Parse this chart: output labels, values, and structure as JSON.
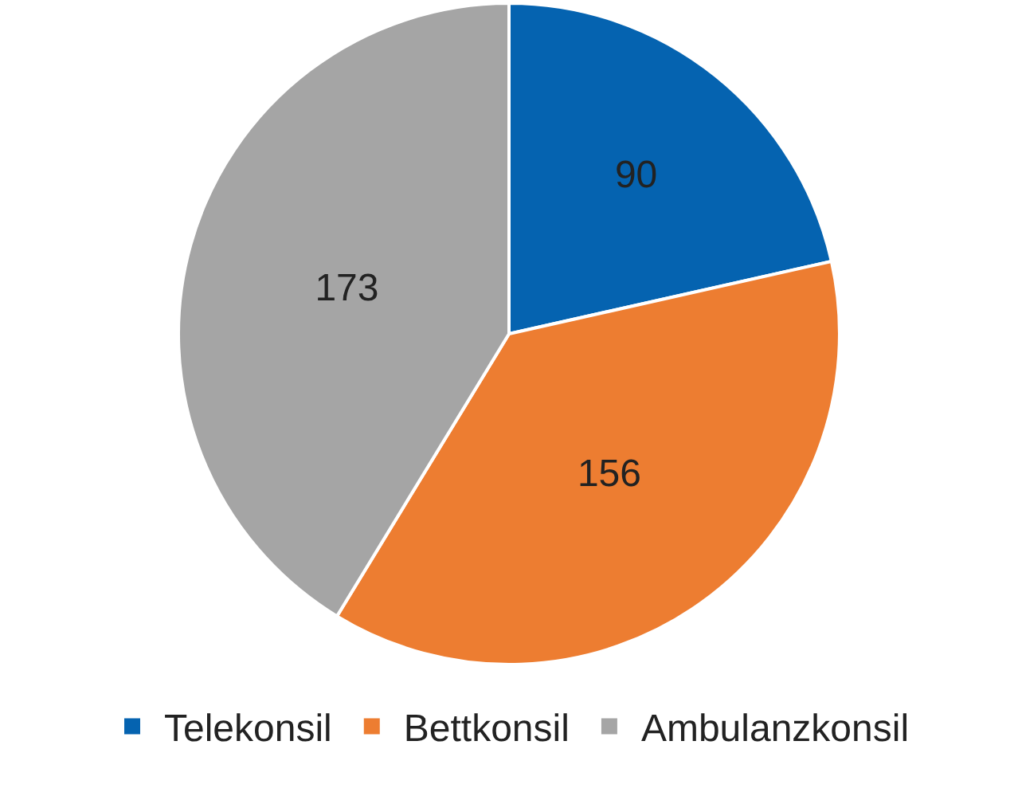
{
  "chart_data": {
    "type": "pie",
    "categories": [
      "Telekonsil",
      "Bettkonsil",
      "Ambulanzkonsil"
    ],
    "values": [
      90,
      156,
      173
    ],
    "colors": [
      "#0563b0",
      "#ed7d31",
      "#a5a5a5"
    ],
    "data_labels": true,
    "legend": "bottom"
  }
}
